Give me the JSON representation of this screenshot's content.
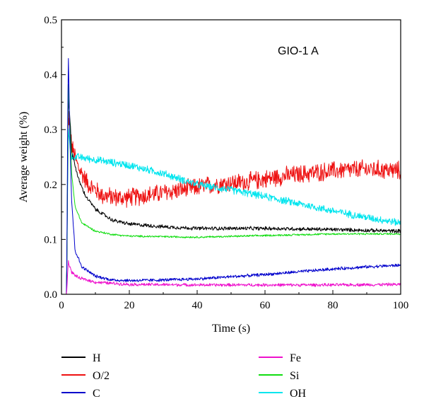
{
  "chart_data": {
    "type": "line",
    "annotation": "GIO-1 A",
    "xlabel": "Time (s)",
    "ylabel": "Average weight (%)",
    "xlim": [
      0,
      100
    ],
    "ylim": [
      0,
      0.5
    ],
    "x_ticks": [
      0,
      20,
      40,
      60,
      80,
      100
    ],
    "y_ticks": [
      0.0,
      0.1,
      0.2,
      0.3,
      0.4,
      0.5
    ],
    "x_tick_labels": [
      "0",
      "20",
      "40",
      "60",
      "80",
      "100"
    ],
    "y_tick_labels": [
      "0.0",
      "0.1",
      "0.2",
      "0.3",
      "0.4",
      "0.5"
    ],
    "legend_placement": "bottom",
    "series": [
      {
        "name": "H",
        "color": "#000000",
        "noise": 0.003,
        "points": [
          [
            0,
            0
          ],
          [
            1.5,
            0
          ],
          [
            2,
            0.36
          ],
          [
            2.5,
            0.32
          ],
          [
            3,
            0.26
          ],
          [
            5,
            0.21
          ],
          [
            7,
            0.18
          ],
          [
            10,
            0.155
          ],
          [
            15,
            0.135
          ],
          [
            20,
            0.128
          ],
          [
            30,
            0.123
          ],
          [
            40,
            0.12
          ],
          [
            60,
            0.12
          ],
          [
            80,
            0.118
          ],
          [
            100,
            0.115
          ]
        ]
      },
      {
        "name": "O/2",
        "color": "#ee1111",
        "noise": 0.015,
        "points": [
          [
            0,
            0
          ],
          [
            1.5,
            0
          ],
          [
            2,
            0.33
          ],
          [
            2.5,
            0.3
          ],
          [
            3,
            0.27
          ],
          [
            5,
            0.23
          ],
          [
            8,
            0.2
          ],
          [
            12,
            0.18
          ],
          [
            18,
            0.175
          ],
          [
            25,
            0.18
          ],
          [
            35,
            0.19
          ],
          [
            45,
            0.2
          ],
          [
            55,
            0.205
          ],
          [
            65,
            0.215
          ],
          [
            80,
            0.225
          ],
          [
            90,
            0.228
          ],
          [
            100,
            0.225
          ]
        ]
      },
      {
        "name": "C",
        "color": "#0000cc",
        "noise": 0.0025,
        "points": [
          [
            0,
            0
          ],
          [
            1.5,
            0
          ],
          [
            2,
            0.445
          ],
          [
            2.5,
            0.28
          ],
          [
            3,
            0.17
          ],
          [
            4,
            0.08
          ],
          [
            6,
            0.05
          ],
          [
            10,
            0.033
          ],
          [
            15,
            0.026
          ],
          [
            20,
            0.025
          ],
          [
            30,
            0.026
          ],
          [
            40,
            0.028
          ],
          [
            50,
            0.032
          ],
          [
            60,
            0.036
          ],
          [
            70,
            0.041
          ],
          [
            80,
            0.046
          ],
          [
            90,
            0.05
          ],
          [
            100,
            0.053
          ]
        ]
      },
      {
        "name": "Fe",
        "color": "#ee11cc",
        "noise": 0.0025,
        "points": [
          [
            0,
            0
          ],
          [
            1.5,
            0
          ],
          [
            2,
            0.06
          ],
          [
            3,
            0.04
          ],
          [
            5,
            0.03
          ],
          [
            10,
            0.022
          ],
          [
            20,
            0.018
          ],
          [
            40,
            0.017
          ],
          [
            60,
            0.017
          ],
          [
            80,
            0.017
          ],
          [
            100,
            0.018
          ]
        ]
      },
      {
        "name": "Si",
        "color": "#11dd11",
        "noise": 0.0015,
        "points": [
          [
            0,
            0
          ],
          [
            1.5,
            0
          ],
          [
            2,
            0.39
          ],
          [
            2.5,
            0.3
          ],
          [
            3,
            0.22
          ],
          [
            4,
            0.16
          ],
          [
            6,
            0.13
          ],
          [
            10,
            0.115
          ],
          [
            15,
            0.109
          ],
          [
            20,
            0.106
          ],
          [
            40,
            0.104
          ],
          [
            60,
            0.107
          ],
          [
            80,
            0.11
          ],
          [
            100,
            0.11
          ]
        ]
      },
      {
        "name": "OH",
        "color": "#00e5ee",
        "noise": 0.006,
        "points": [
          [
            0,
            0
          ],
          [
            1.5,
            0
          ],
          [
            2,
            0.3
          ],
          [
            2.5,
            0.27
          ],
          [
            3,
            0.25
          ],
          [
            5,
            0.25
          ],
          [
            10,
            0.245
          ],
          [
            20,
            0.235
          ],
          [
            30,
            0.22
          ],
          [
            40,
            0.2
          ],
          [
            50,
            0.19
          ],
          [
            60,
            0.178
          ],
          [
            70,
            0.165
          ],
          [
            80,
            0.152
          ],
          [
            90,
            0.14
          ],
          [
            100,
            0.13
          ]
        ]
      }
    ]
  }
}
